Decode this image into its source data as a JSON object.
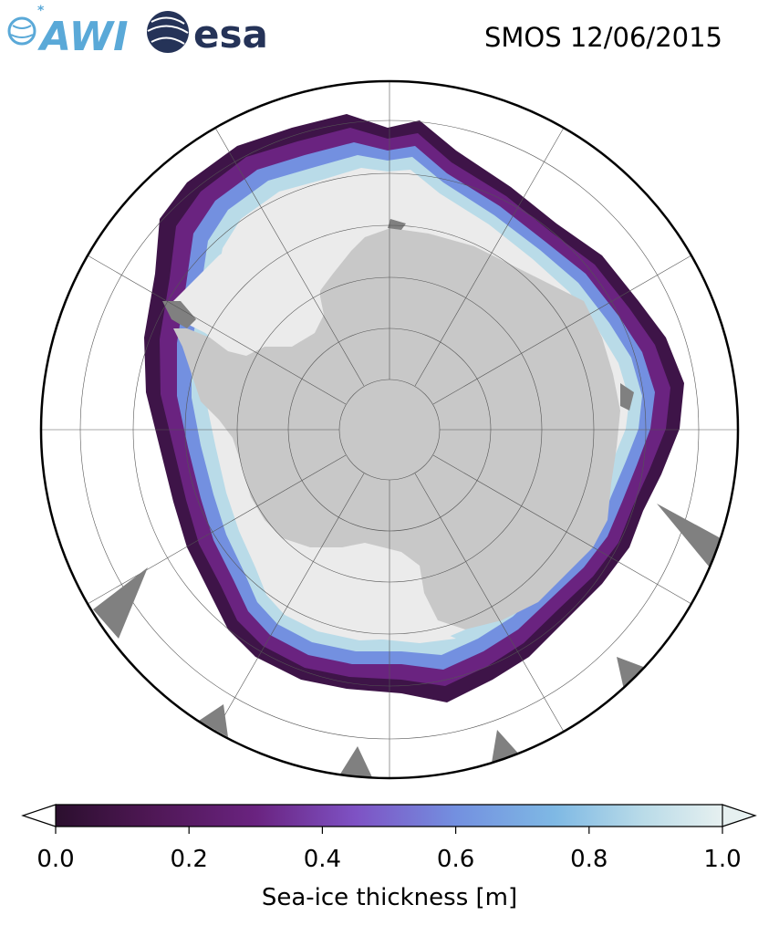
{
  "header": {
    "logo_awi": "AWI",
    "logo_esa": "esa",
    "title": "SMOS 12/06/2015"
  },
  "map": {
    "projection": "south-polar-stereographic",
    "colors": {
      "land": "#c8c8c8",
      "land_shelf": "#808080",
      "thick_ice": "#ebebeb",
      "ocean": "#ffffff",
      "grid": "#555555"
    }
  },
  "colorbar": {
    "label": "Sea-ice thickness [m]",
    "ticks": [
      "0.0",
      "0.2",
      "0.4",
      "0.6",
      "0.8",
      "1.0"
    ],
    "range": [
      0.0,
      1.0
    ],
    "colormap": "dense",
    "stops": [
      "#2b0f2e",
      "#4e1754",
      "#6a2380",
      "#7e52c4",
      "#7390e0",
      "#7fb9e4",
      "#b9dbe8",
      "#e6f0f0"
    ]
  }
}
